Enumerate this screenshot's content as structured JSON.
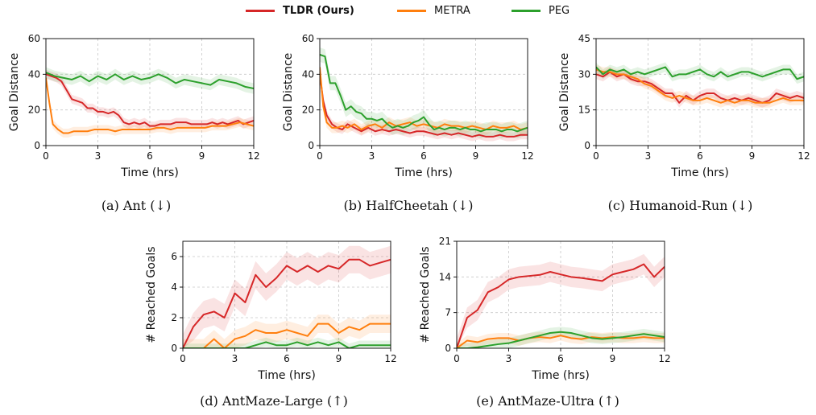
{
  "legend": [
    {
      "name": "TLDR (Ours)",
      "color": "#d62728",
      "bold": true
    },
    {
      "name": "METRA",
      "color": "#ff7f0e",
      "bold": false
    },
    {
      "name": "PEG",
      "color": "#2ca02c",
      "bold": false
    }
  ],
  "captions": {
    "a": "(a) Ant (↓)",
    "b": "(b) HalfCheetah (↓)",
    "c": "(c) Humanoid-Run (↓)",
    "d": "(d) AntMaze-Large (↑)",
    "e": "(e) AntMaze-Ultra (↑)"
  },
  "chart_data": [
    {
      "id": "a",
      "type": "line",
      "xlabel": "Time (hrs)",
      "ylabel": "Goal Distance",
      "xlim": [
        0,
        12
      ],
      "ylim": [
        0,
        60
      ],
      "xticks": [
        0,
        3,
        6,
        9,
        12
      ],
      "yticks": [
        0,
        20,
        40,
        60
      ],
      "grid": true,
      "series": [
        {
          "name": "TLDR (Ours)",
          "color": "#d62728",
          "band": 2.5,
          "x": [
            0,
            0.3,
            0.6,
            0.9,
            1.2,
            1.5,
            1.8,
            2.1,
            2.4,
            2.7,
            3.0,
            3.3,
            3.6,
            3.9,
            4.2,
            4.5,
            4.8,
            5.1,
            5.4,
            5.7,
            6.0,
            6.3,
            6.6,
            6.9,
            7.2,
            7.5,
            7.8,
            8.1,
            8.4,
            8.7,
            9.0,
            9.3,
            9.6,
            9.9,
            10.2,
            10.5,
            10.8,
            11.1,
            11.4,
            11.7,
            12.0
          ],
          "y": [
            40,
            39,
            38,
            36,
            31,
            26,
            25,
            24,
            21,
            21,
            19,
            19,
            18,
            19,
            17,
            13,
            12,
            13,
            12,
            13,
            11,
            11,
            12,
            12,
            12,
            13,
            13,
            13,
            12,
            12,
            12,
            12,
            13,
            12,
            13,
            12,
            13,
            14,
            12,
            13,
            14
          ]
        },
        {
          "name": "METRA",
          "color": "#ff7f0e",
          "band": 2.5,
          "x": [
            0,
            0.2,
            0.4,
            0.7,
            1.0,
            1.3,
            1.6,
            2.0,
            2.4,
            2.8,
            3.2,
            3.6,
            4.0,
            4.4,
            4.8,
            5.2,
            5.6,
            6.0,
            6.4,
            6.8,
            7.2,
            7.6,
            8.0,
            8.4,
            8.8,
            9.2,
            9.6,
            10.0,
            10.4,
            10.8,
            11.2,
            11.6,
            12.0
          ],
          "y": [
            38,
            24,
            12,
            9,
            7,
            7,
            8,
            8,
            8,
            9,
            9,
            9,
            8,
            9,
            9,
            9,
            9,
            9,
            10,
            10,
            9,
            10,
            10,
            10,
            10,
            10,
            11,
            11,
            11,
            12,
            13,
            12,
            11
          ]
        },
        {
          "name": "PEG",
          "color": "#2ca02c",
          "band": 3,
          "x": [
            0,
            0.5,
            1.0,
            1.5,
            2.0,
            2.5,
            3.0,
            3.5,
            4.0,
            4.5,
            5.0,
            5.5,
            6.0,
            6.5,
            7.0,
            7.5,
            8.0,
            8.5,
            9.0,
            9.5,
            10.0,
            10.5,
            11.0,
            11.5,
            12.0
          ],
          "y": [
            41,
            39,
            38,
            37,
            39,
            36,
            39,
            37,
            40,
            37,
            39,
            37,
            38,
            40,
            38,
            35,
            37,
            36,
            35,
            34,
            37,
            36,
            35,
            33,
            32
          ]
        }
      ]
    },
    {
      "id": "b",
      "type": "line",
      "xlabel": "Time (hrs)",
      "ylabel": "Goal Distance",
      "xlim": [
        0,
        12
      ],
      "ylim": [
        0,
        60
      ],
      "xticks": [
        0,
        3,
        6,
        9,
        12
      ],
      "yticks": [
        0,
        20,
        40,
        60
      ],
      "grid": true,
      "series": [
        {
          "name": "TLDR (Ours)",
          "color": "#d62728",
          "band": 2.5,
          "x": [
            0,
            0.2,
            0.4,
            0.7,
            1.0,
            1.3,
            1.6,
            2.0,
            2.4,
            2.8,
            3.2,
            3.6,
            4.0,
            4.4,
            4.8,
            5.2,
            5.6,
            6.0,
            6.4,
            6.8,
            7.2,
            7.6,
            8.0,
            8.4,
            8.8,
            9.2,
            9.6,
            10.0,
            10.4,
            10.8,
            11.2,
            11.6,
            12.0
          ],
          "y": [
            40,
            25,
            17,
            12,
            10,
            9,
            12,
            10,
            8,
            10,
            8,
            9,
            8,
            9,
            8,
            7,
            8,
            8,
            7,
            6,
            7,
            6,
            7,
            6,
            5,
            6,
            5,
            5,
            6,
            5,
            5,
            6,
            6
          ]
        },
        {
          "name": "METRA",
          "color": "#ff7f0e",
          "band": 3,
          "x": [
            0,
            0.2,
            0.4,
            0.7,
            1.0,
            1.3,
            1.6,
            2.0,
            2.4,
            2.8,
            3.2,
            3.6,
            4.0,
            4.4,
            4.8,
            5.2,
            5.6,
            6.0,
            6.4,
            6.8,
            7.2,
            7.6,
            8.0,
            8.4,
            8.8,
            9.2,
            9.6,
            10.0,
            10.4,
            10.8,
            11.2,
            11.6,
            12.0
          ],
          "y": [
            44,
            22,
            13,
            10,
            10,
            11,
            10,
            12,
            9,
            11,
            12,
            10,
            13,
            11,
            12,
            13,
            11,
            12,
            11,
            10,
            12,
            11,
            11,
            10,
            11,
            10,
            9,
            11,
            10,
            10,
            11,
            9,
            10
          ]
        },
        {
          "name": "PEG",
          "color": "#2ca02c",
          "band": 4,
          "x": [
            0,
            0.3,
            0.6,
            0.9,
            1.2,
            1.5,
            1.8,
            2.1,
            2.4,
            2.7,
            3.0,
            3.3,
            3.6,
            3.9,
            4.2,
            4.5,
            4.8,
            5.1,
            5.4,
            5.7,
            6.0,
            6.3,
            6.6,
            6.9,
            7.2,
            7.5,
            7.8,
            8.1,
            8.4,
            8.7,
            9.0,
            9.3,
            9.6,
            9.9,
            10.2,
            10.5,
            10.8,
            11.1,
            11.4,
            11.7,
            12.0
          ],
          "y": [
            51,
            50,
            35,
            35,
            28,
            20,
            22,
            19,
            18,
            15,
            15,
            14,
            15,
            12,
            10,
            11,
            10,
            11,
            13,
            14,
            16,
            12,
            9,
            10,
            9,
            10,
            10,
            9,
            10,
            9,
            9,
            8,
            9,
            9,
            9,
            8,
            9,
            9,
            8,
            9,
            10
          ]
        }
      ]
    },
    {
      "id": "c",
      "type": "line",
      "xlabel": "Time (hrs)",
      "ylabel": "Goal Distance",
      "xlim": [
        0,
        12
      ],
      "ylim": [
        0,
        45
      ],
      "xticks": [
        0,
        3,
        6,
        9,
        12
      ],
      "yticks": [
        0,
        15,
        30,
        45
      ],
      "grid": true,
      "series": [
        {
          "name": "TLDR (Ours)",
          "color": "#d62728",
          "band": 2,
          "x": [
            0,
            0.4,
            0.8,
            1.2,
            1.6,
            2.0,
            2.4,
            2.8,
            3.2,
            3.6,
            4.0,
            4.4,
            4.8,
            5.2,
            5.6,
            6.0,
            6.4,
            6.8,
            7.2,
            7.6,
            8.0,
            8.4,
            8.8,
            9.2,
            9.6,
            10.0,
            10.4,
            10.8,
            11.2,
            11.6,
            12.0
          ],
          "y": [
            30,
            29,
            31,
            29,
            30,
            28,
            27,
            27,
            26,
            24,
            22,
            22,
            18,
            21,
            19,
            21,
            22,
            22,
            20,
            19,
            20,
            19,
            20,
            19,
            18,
            19,
            22,
            21,
            20,
            21,
            20
          ]
        },
        {
          "name": "METRA",
          "color": "#ff7f0e",
          "band": 2,
          "x": [
            0,
            0.4,
            0.8,
            1.2,
            1.6,
            2.0,
            2.4,
            2.8,
            3.2,
            3.6,
            4.0,
            4.4,
            4.8,
            5.2,
            5.6,
            6.0,
            6.4,
            6.8,
            7.2,
            7.6,
            8.0,
            8.4,
            8.8,
            9.2,
            9.6,
            10.0,
            10.4,
            10.8,
            11.2,
            11.6,
            12.0
          ],
          "y": [
            32,
            31,
            31,
            30,
            30,
            29,
            28,
            26,
            25,
            23,
            21,
            20,
            21,
            20,
            19,
            19,
            20,
            19,
            18,
            19,
            18,
            19,
            19,
            18,
            18,
            18,
            19,
            20,
            19,
            19,
            19
          ]
        },
        {
          "name": "PEG",
          "color": "#2ca02c",
          "band": 2,
          "x": [
            0,
            0.4,
            0.8,
            1.2,
            1.6,
            2.0,
            2.4,
            2.8,
            3.2,
            3.6,
            4.0,
            4.4,
            4.8,
            5.2,
            5.6,
            6.0,
            6.4,
            6.8,
            7.2,
            7.6,
            8.0,
            8.4,
            8.8,
            9.2,
            9.6,
            10.0,
            10.4,
            10.8,
            11.2,
            11.6,
            12.0
          ],
          "y": [
            33,
            30,
            32,
            31,
            32,
            30,
            31,
            30,
            31,
            32,
            33,
            29,
            30,
            30,
            31,
            32,
            30,
            29,
            31,
            29,
            30,
            31,
            31,
            30,
            29,
            30,
            31,
            32,
            32,
            28,
            29
          ]
        }
      ]
    },
    {
      "id": "d",
      "type": "line",
      "xlabel": "Time (hrs)",
      "ylabel": "# Reached Goals",
      "xlim": [
        0,
        12
      ],
      "ylim": [
        0,
        7
      ],
      "xticks": [
        0,
        3,
        6,
        9,
        12
      ],
      "yticks": [
        0,
        2,
        4,
        6
      ],
      "grid": true,
      "series": [
        {
          "name": "TLDR (Ours)",
          "color": "#d62728",
          "band": 0.9,
          "x": [
            0,
            0.6,
            1.2,
            1.8,
            2.4,
            3.0,
            3.6,
            4.2,
            4.8,
            5.4,
            6.0,
            6.6,
            7.2,
            7.8,
            8.4,
            9.0,
            9.6,
            10.2,
            10.8,
            11.4,
            12.0
          ],
          "y": [
            0,
            1.4,
            2.2,
            2.4,
            2.0,
            3.6,
            3.0,
            4.8,
            4.0,
            4.6,
            5.4,
            5.0,
            5.4,
            5.0,
            5.4,
            5.2,
            5.8,
            5.8,
            5.4,
            5.6,
            5.8
          ]
        },
        {
          "name": "METRA",
          "color": "#ff7f0e",
          "band": 0.6,
          "x": [
            0,
            0.6,
            1.2,
            1.8,
            2.4,
            3.0,
            3.6,
            4.2,
            4.8,
            5.4,
            6.0,
            6.6,
            7.2,
            7.8,
            8.4,
            9.0,
            9.6,
            10.2,
            10.8,
            11.4,
            12.0
          ],
          "y": [
            0,
            0,
            0,
            0.6,
            0,
            0.6,
            0.8,
            1.2,
            1.0,
            1.0,
            1.2,
            1.0,
            0.8,
            1.6,
            1.6,
            1.0,
            1.4,
            1.2,
            1.6,
            1.6,
            1.6
          ]
        },
        {
          "name": "PEG",
          "color": "#2ca02c",
          "band": 0.3,
          "x": [
            0,
            0.6,
            1.2,
            1.8,
            2.4,
            3.0,
            3.6,
            4.2,
            4.8,
            5.4,
            6.0,
            6.6,
            7.2,
            7.8,
            8.4,
            9.0,
            9.6,
            10.2,
            10.8,
            11.4,
            12.0
          ],
          "y": [
            0,
            0,
            0,
            0,
            0,
            0,
            0,
            0.2,
            0.4,
            0.2,
            0.2,
            0.4,
            0.2,
            0.4,
            0.2,
            0.4,
            0,
            0.2,
            0.2,
            0.2,
            0.2
          ]
        }
      ]
    },
    {
      "id": "e",
      "type": "line",
      "xlabel": "Time (hrs)",
      "ylabel": "# Reached Goals",
      "xlim": [
        0,
        12
      ],
      "ylim": [
        0,
        21
      ],
      "xticks": [
        0,
        3,
        6,
        9,
        12
      ],
      "yticks": [
        0,
        7,
        14,
        21
      ],
      "grid": true,
      "series": [
        {
          "name": "TLDR (Ours)",
          "color": "#d62728",
          "band": 2,
          "x": [
            0,
            0.6,
            1.2,
            1.8,
            2.4,
            3.0,
            3.6,
            4.2,
            4.8,
            5.4,
            6.0,
            6.6,
            7.2,
            7.8,
            8.4,
            9.0,
            9.6,
            10.2,
            10.8,
            11.4,
            12.0
          ],
          "y": [
            0,
            6.0,
            7.5,
            11.0,
            12.0,
            13.5,
            14.0,
            14.2,
            14.4,
            15.0,
            14.5,
            14.0,
            13.8,
            13.5,
            13.2,
            14.5,
            15.0,
            15.5,
            16.5,
            14.0,
            16.0
          ]
        },
        {
          "name": "METRA",
          "color": "#ff7f0e",
          "band": 1,
          "x": [
            0,
            0.6,
            1.2,
            1.8,
            2.4,
            3.0,
            3.6,
            4.2,
            4.8,
            5.4,
            6.0,
            6.6,
            7.2,
            7.8,
            8.4,
            9.0,
            9.6,
            10.2,
            10.8,
            11.4,
            12.0
          ],
          "y": [
            0,
            1.5,
            1.2,
            1.8,
            2.0,
            2.0,
            1.5,
            2.0,
            2.2,
            2.0,
            2.5,
            2.0,
            1.8,
            2.2,
            2.0,
            2.2,
            2.0,
            2.0,
            2.2,
            2.0,
            2.0
          ]
        },
        {
          "name": "PEG",
          "color": "#2ca02c",
          "band": 1,
          "x": [
            0,
            0.6,
            1.2,
            1.8,
            2.4,
            3.0,
            3.6,
            4.2,
            4.8,
            5.4,
            6.0,
            6.6,
            7.2,
            7.8,
            8.4,
            9.0,
            9.6,
            10.2,
            10.8,
            11.4,
            12.0
          ],
          "y": [
            0,
            0,
            0.2,
            0.5,
            0.8,
            1.0,
            1.5,
            2.0,
            2.5,
            3.0,
            3.2,
            3.0,
            2.5,
            2.0,
            1.8,
            2.0,
            2.2,
            2.5,
            2.8,
            2.5,
            2.2
          ]
        }
      ]
    }
  ]
}
